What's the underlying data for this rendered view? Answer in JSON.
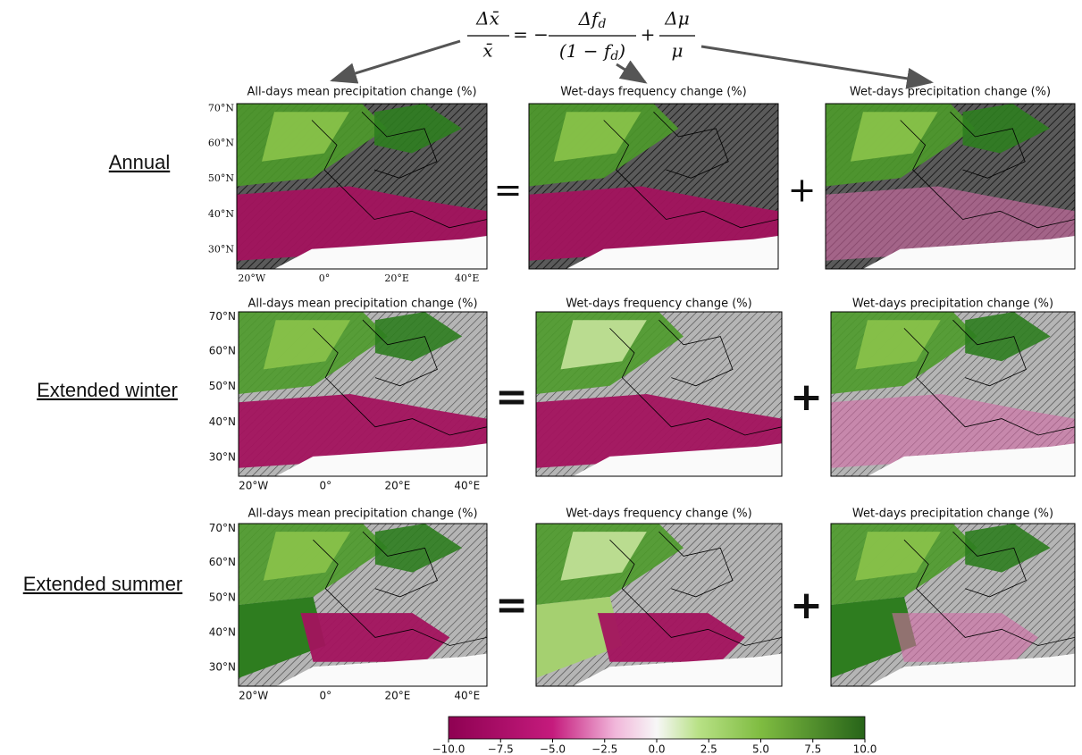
{
  "equation": {
    "lhs_num": "Δx̄",
    "lhs_den": "x̄",
    "eq": "= −",
    "t1_num_main": "Δf",
    "t1_num_sub": "d",
    "t1_den_main": "(1 − f",
    "t1_den_sub": "d",
    "t1_den_close": ")",
    "plus": "+",
    "t2_num": "Δμ",
    "t2_den": "μ"
  },
  "rows": [
    {
      "label": "Annual",
      "operators": [
        "=",
        "+"
      ],
      "panels": [
        {
          "title": "All-days mean precipitation change (%)"
        },
        {
          "title": "Wet-days frequency change (%)"
        },
        {
          "title": "Wet-days precipitation change (%)"
        }
      ],
      "lat_labels": [
        "70°N",
        "60°N",
        "50°N",
        "40°N",
        "30°N"
      ],
      "lon_labels": [
        "20°W",
        "0°",
        "20°E",
        "40°E"
      ]
    },
    {
      "label": "Extended winter",
      "operators": [
        "=",
        "+"
      ],
      "panels": [
        {
          "title": "All-days mean precipitation change (%)"
        },
        {
          "title": "Wet-days frequency change (%)"
        },
        {
          "title": "Wet-days precipitation change (%)"
        }
      ],
      "lat_labels": [
        "70°N",
        "60°N",
        "50°N",
        "40°N",
        "30°N"
      ],
      "lon_labels": [
        "20°W",
        "0°",
        "20°E",
        "40°E"
      ]
    },
    {
      "label": "Extended summer",
      "operators": [
        "=",
        "+"
      ],
      "panels": [
        {
          "title": "All-days mean precipitation change (%)"
        },
        {
          "title": "Wet-days frequency change (%)"
        },
        {
          "title": "Wet-days precipitation change (%)"
        }
      ],
      "lat_labels": [
        "70°N",
        "60°N",
        "50°N",
        "40°N",
        "30°N"
      ],
      "lon_labels": [
        "20°W",
        "0°",
        "20°E",
        "40°E"
      ]
    }
  ],
  "colorbar": {
    "range": [
      -10,
      10
    ],
    "ticks": [
      {
        "value": -10,
        "label": "−10.0"
      },
      {
        "value": -7.5,
        "label": "−7.5"
      },
      {
        "value": -5,
        "label": "−5.0"
      },
      {
        "value": -2.5,
        "label": "−2.5"
      },
      {
        "value": 0,
        "label": "0.0"
      },
      2.5,
      {
        "value": 5,
        "label": "5.0"
      },
      7.5,
      {
        "value": 10,
        "label": "10.0"
      }
    ]
  }
}
